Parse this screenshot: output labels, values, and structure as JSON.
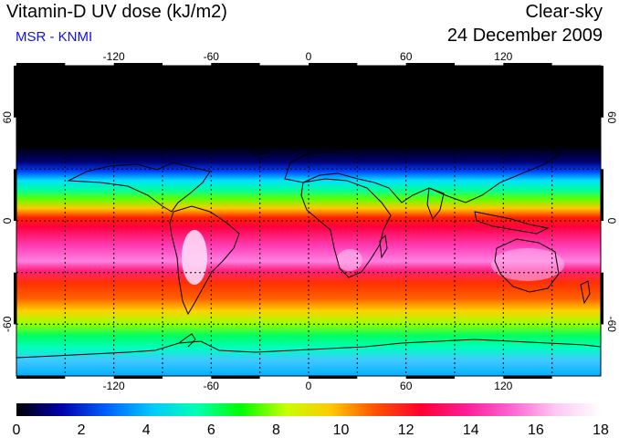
{
  "header": {
    "title": "Vitamin-D UV dose (kJ/m2)",
    "source": "MSR - KNMI",
    "sky_condition": "Clear-sky",
    "date": "24 December 2009"
  },
  "map": {
    "lon_ticks": [
      "-120",
      "-60",
      "0",
      "60",
      "120"
    ],
    "lat_ticks": [
      "60",
      "0",
      "-60"
    ],
    "lon_range": [
      -180,
      180
    ],
    "lat_range": [
      -90,
      90
    ],
    "grid": "dotted",
    "land_outline_color": "#000000"
  },
  "colorbar": {
    "labels": [
      "0",
      "2",
      "4",
      "6",
      "8",
      "10",
      "12",
      "14",
      "16",
      "18"
    ],
    "range": [
      0,
      18
    ],
    "colors": [
      "#000000",
      "#0000b0",
      "#0060ff",
      "#00c8ff",
      "#00ffb4",
      "#00ff00",
      "#c8ff00",
      "#ffc800",
      "#ff5000",
      "#ff0030",
      "#ff1e96",
      "#ff64d2",
      "#ffc8f5",
      "#ffffff"
    ]
  }
}
